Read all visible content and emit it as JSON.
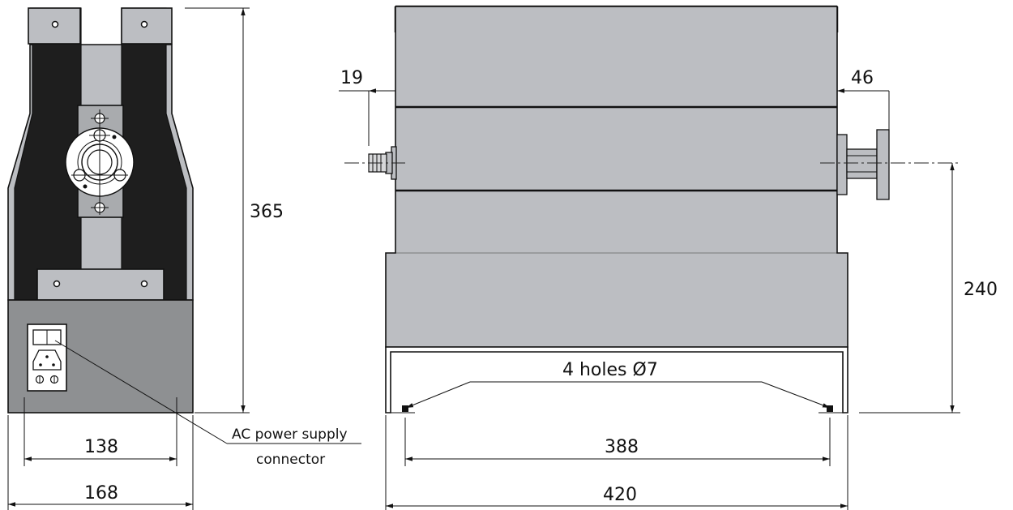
{
  "colors": {
    "housing": "#bcbec2",
    "bracket_plate": "#a9abae",
    "base_box": "#8e9092",
    "dark_frame": "#1e1e1e",
    "line": "#111111",
    "background": "#ffffff"
  },
  "icons": [
    "switch-icon",
    "power-socket-icon",
    "fuse-holder-icon",
    "mounting-hole-icon",
    "flange-connector-icon",
    "screw-icon"
  ],
  "front_view": {
    "dim_height": "365",
    "dim_inner_width": "138",
    "dim_outer_width": "168",
    "callout_line1": "AC power supply",
    "callout_line2": "connector"
  },
  "side_view": {
    "dim_left_offset": "19",
    "dim_right_offset": "46",
    "dim_height": "240",
    "holes_label": "4 holes Ø7",
    "dim_hole_spacing": "388",
    "dim_total_width": "420"
  }
}
